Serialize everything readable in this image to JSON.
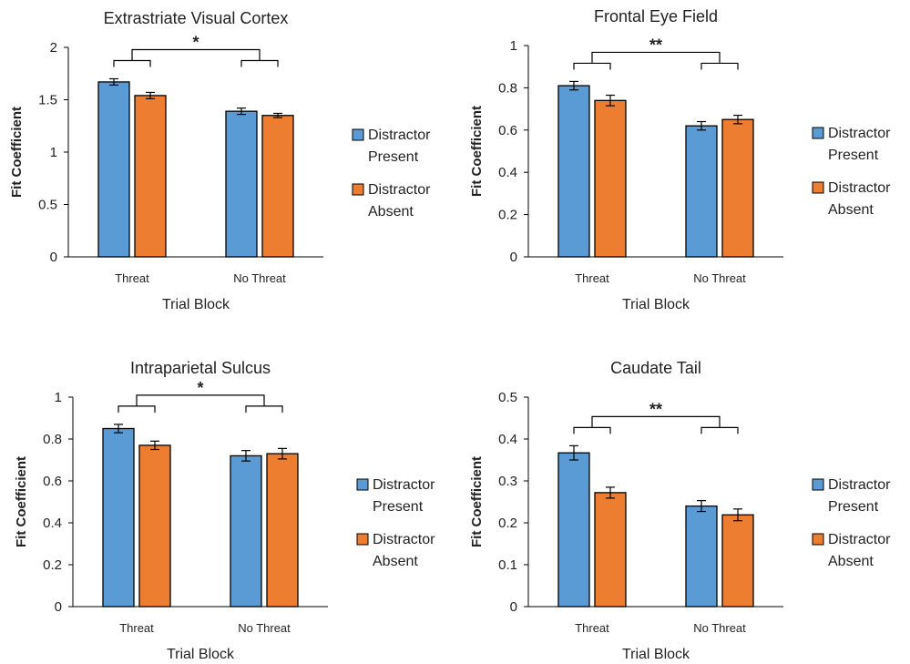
{
  "chart_data": [
    {
      "type": "bar",
      "title": "Extrastriate Visual Cortex",
      "xlabel": "Trial Block",
      "ylabel": "Fit Coefficient",
      "categories": [
        "Threat",
        "No Threat"
      ],
      "series": [
        {
          "name": "Distractor Present",
          "values": [
            1.67,
            1.39
          ],
          "errors": [
            0.03,
            0.03
          ]
        },
        {
          "name": "Distractor Absent",
          "values": [
            1.54,
            1.35
          ],
          "errors": [
            0.03,
            0.02
          ]
        }
      ],
      "ylim": [
        0,
        2
      ],
      "yticks": [
        "0",
        "0.5",
        "1",
        "1.5",
        "2"
      ],
      "significance": "*",
      "legend": [
        "Distractor",
        "Present",
        "Distractor",
        "Absent"
      ]
    },
    {
      "type": "bar",
      "title": "Frontal Eye Field",
      "xlabel": "Trial Block",
      "ylabel": "Fit Coefficient",
      "categories": [
        "Threat",
        "No Threat"
      ],
      "series": [
        {
          "name": "Distractor Present",
          "values": [
            0.81,
            0.62
          ],
          "errors": [
            0.02,
            0.02
          ]
        },
        {
          "name": "Distractor Absent",
          "values": [
            0.74,
            0.65
          ],
          "errors": [
            0.025,
            0.02
          ]
        }
      ],
      "ylim": [
        0,
        1
      ],
      "yticks": [
        "0",
        "0.2",
        "0.4",
        "0.6",
        "0.8",
        "1"
      ],
      "significance": "**",
      "legend": [
        "Distractor",
        "Present",
        "Distractor",
        "Absent"
      ]
    },
    {
      "type": "bar",
      "title": "Intraparietal Sulcus",
      "xlabel": "Trial Block",
      "ylabel": "Fit Coefficient",
      "categories": [
        "Threat",
        "No Threat"
      ],
      "series": [
        {
          "name": "Distractor Present",
          "values": [
            0.85,
            0.72
          ],
          "errors": [
            0.02,
            0.025
          ]
        },
        {
          "name": "Distractor Absent",
          "values": [
            0.77,
            0.73
          ],
          "errors": [
            0.02,
            0.025
          ]
        }
      ],
      "ylim": [
        0,
        1
      ],
      "yticks": [
        "0",
        "0.2",
        "0.4",
        "0.6",
        "0.8",
        "1"
      ],
      "significance": "*",
      "legend": [
        "Distractor",
        "Present",
        "Distractor",
        "Absent"
      ]
    },
    {
      "type": "bar",
      "title": "Caudate Tail",
      "xlabel": "Trial Block",
      "ylabel": "Fit Coefficient",
      "categories": [
        "Threat",
        "No Threat"
      ],
      "series": [
        {
          "name": "Distractor Present",
          "values": [
            0.367,
            0.24
          ],
          "errors": [
            0.017,
            0.013
          ]
        },
        {
          "name": "Distractor Absent",
          "values": [
            0.272,
            0.219
          ],
          "errors": [
            0.013,
            0.014
          ]
        }
      ],
      "ylim": [
        0,
        0.5
      ],
      "yticks": [
        "0",
        "0.1",
        "0.2",
        "0.3",
        "0.4",
        "0.5"
      ],
      "significance": "**",
      "legend": [
        "Distractor",
        "Present",
        "Distractor",
        "Absent"
      ]
    }
  ],
  "colors": {
    "present": "#5b9bd5",
    "absent": "#ed7d31",
    "axis": "#000000",
    "grid": "#d9d9d9"
  }
}
